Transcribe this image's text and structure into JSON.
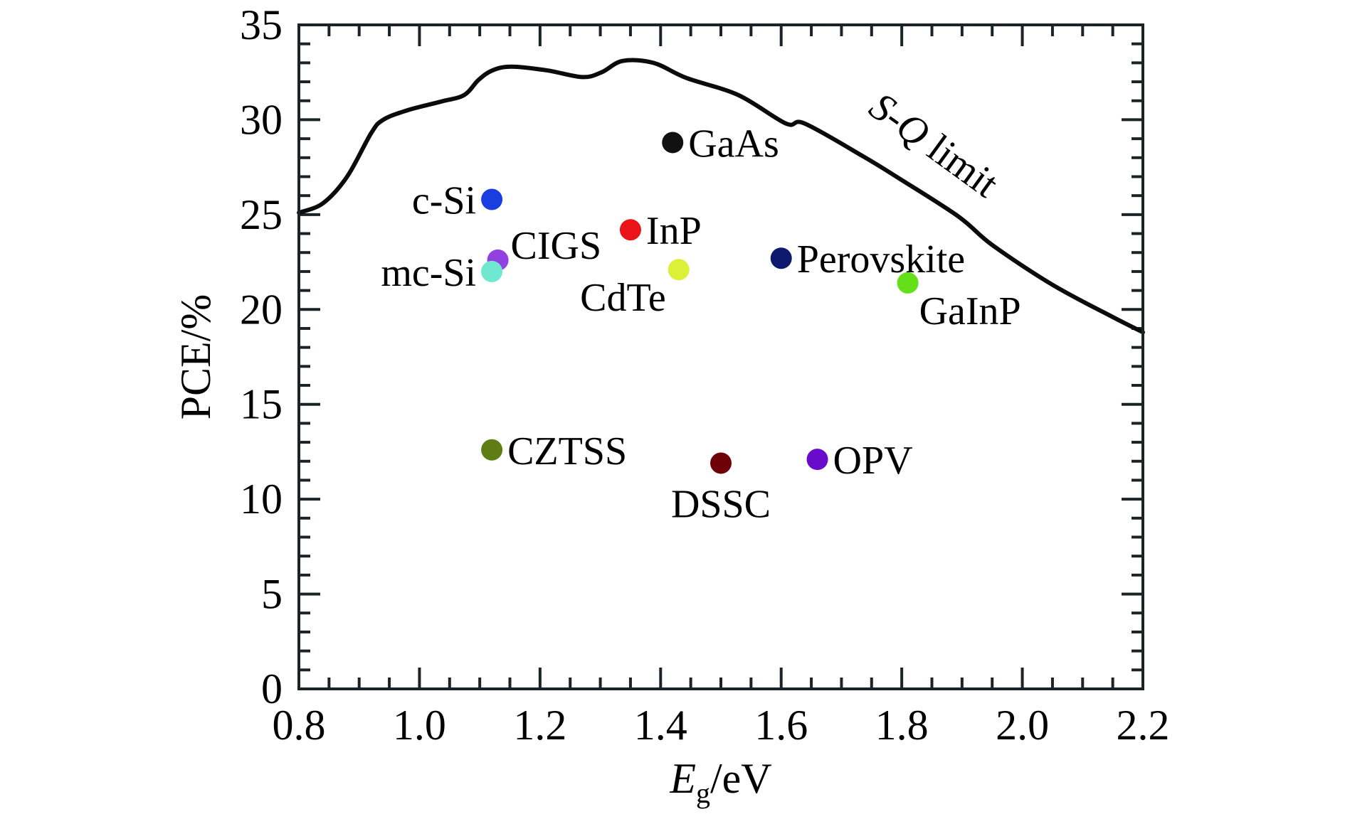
{
  "chart_data": {
    "type": "scatter",
    "title": "",
    "xlabel": "E_g/eV",
    "xlabel_main": "E",
    "xlabel_sub": "g",
    "xlabel_unit": "/eV",
    "ylabel": "PCE/%",
    "xlim": [
      0.8,
      2.2
    ],
    "ylim": [
      0,
      35
    ],
    "x_major_step": 0.2,
    "x_minor_step": 0.05,
    "y_major_step": 5,
    "y_minor_step": 1,
    "grid": false,
    "x_ticks": [
      "0.8",
      "1.0",
      "1.2",
      "1.4",
      "1.6",
      "1.8",
      "2.0",
      "2.2"
    ],
    "y_ticks": [
      "0",
      "5",
      "10",
      "15",
      "20",
      "25",
      "30",
      "35"
    ],
    "curve": {
      "name": "S-Q limit",
      "label_italic": "S-Q",
      "label_rest": " limit",
      "color": "#0b0b0b",
      "points": [
        [
          0.8,
          25.1
        ],
        [
          0.84,
          25.6
        ],
        [
          0.88,
          27.0
        ],
        [
          0.92,
          29.3
        ],
        [
          0.94,
          30.0
        ],
        [
          0.98,
          30.5
        ],
        [
          1.035,
          30.95
        ],
        [
          1.074,
          31.3
        ],
        [
          1.098,
          32.1
        ],
        [
          1.121,
          32.6
        ],
        [
          1.153,
          32.8
        ],
        [
          1.212,
          32.6
        ],
        [
          1.27,
          32.25
        ],
        [
          1.302,
          32.5
        ],
        [
          1.337,
          33.1
        ],
        [
          1.388,
          33.0
        ],
        [
          1.443,
          32.2
        ],
        [
          1.529,
          31.3
        ],
        [
          1.608,
          29.8
        ],
        [
          1.639,
          29.8
        ],
        [
          1.737,
          28.05
        ],
        [
          1.796,
          26.9
        ],
        [
          1.894,
          24.9
        ],
        [
          1.95,
          23.4
        ],
        [
          2.05,
          21.3
        ],
        [
          2.15,
          19.6
        ],
        [
          2.2,
          18.8
        ]
      ]
    },
    "points": [
      {
        "name": "GaAs",
        "x": 1.42,
        "y": 28.8,
        "color": "#111111",
        "label_pos": "right"
      },
      {
        "name": "c-Si",
        "x": 1.12,
        "y": 25.8,
        "color": "#1a3de0",
        "label_pos": "left"
      },
      {
        "name": "InP",
        "x": 1.35,
        "y": 24.2,
        "color": "#e8141a",
        "label_pos": "right"
      },
      {
        "name": "CIGS",
        "x": 1.13,
        "y": 22.6,
        "color": "#9340e0",
        "label_pos": "upper-right"
      },
      {
        "name": "mc-Si",
        "x": 1.12,
        "y": 22.0,
        "color": "#70e8cf",
        "label_pos": "left"
      },
      {
        "name": "CdTe",
        "x": 1.43,
        "y": 22.1,
        "color": "#dcf03a",
        "label_pos": "lower-left"
      },
      {
        "name": "Perovskite",
        "x": 1.6,
        "y": 22.7,
        "color": "#0d1a6e",
        "label_pos": "right"
      },
      {
        "name": "GaInP",
        "x": 1.81,
        "y": 21.4,
        "color": "#63e01a",
        "label_pos": "lower-right"
      },
      {
        "name": "CZTSS",
        "x": 1.12,
        "y": 12.6,
        "color": "#5e7d12",
        "label_pos": "right"
      },
      {
        "name": "DSSC",
        "x": 1.5,
        "y": 11.9,
        "color": "#6e0008",
        "label_pos": "below"
      },
      {
        "name": "OPV",
        "x": 1.66,
        "y": 12.1,
        "color": "#6a0acc",
        "label_pos": "right"
      }
    ]
  }
}
